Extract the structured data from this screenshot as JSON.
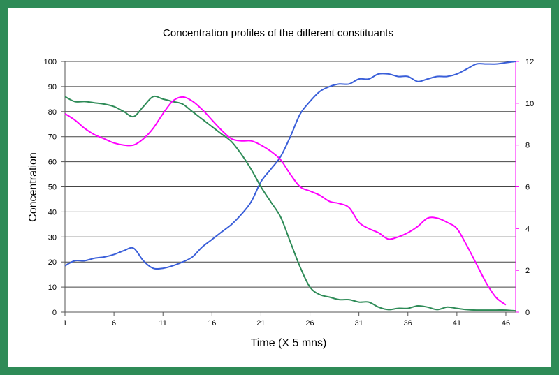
{
  "chart_data": {
    "type": "line",
    "title": "Concentration profiles of the different constituants",
    "xlabel": "Time (X 5 mns)",
    "ylabel": "Concentration",
    "y2label": "",
    "xlim": [
      1,
      47
    ],
    "ylim": [
      0,
      100
    ],
    "y2lim": [
      0,
      12
    ],
    "x_ticks": [
      1,
      6,
      11,
      16,
      21,
      26,
      31,
      36,
      41,
      46
    ],
    "y_ticks": [
      0,
      10,
      20,
      30,
      40,
      50,
      60,
      70,
      80,
      90,
      100
    ],
    "y2_ticks": [
      0,
      2,
      4,
      6,
      8,
      10,
      12
    ],
    "grid": "horizontal",
    "legend": "none",
    "series": [
      {
        "color": "#3a5fd9",
        "axis": "left",
        "x": [
          1,
          2,
          3,
          4,
          5,
          6,
          7,
          8,
          9,
          10,
          11,
          12,
          13,
          14,
          15,
          16,
          17,
          18,
          19,
          20,
          21,
          22,
          23,
          24,
          25,
          26,
          27,
          28,
          29,
          30,
          31,
          32,
          33,
          34,
          35,
          36,
          37,
          38,
          39,
          40,
          41,
          42,
          43,
          44,
          45,
          46,
          47
        ],
        "values": [
          18.5,
          20.5,
          20.5,
          21.5,
          22,
          23,
          24.5,
          25.5,
          20.5,
          17.5,
          17.5,
          18.5,
          20,
          22,
          26,
          29,
          32,
          35,
          39,
          44,
          52,
          57,
          62,
          70,
          79,
          84,
          88,
          90,
          91,
          91,
          93,
          93,
          95,
          95,
          94,
          94,
          92,
          93,
          94,
          94,
          95,
          97,
          99,
          99,
          99,
          99.5,
          100
        ]
      },
      {
        "color": "#2e8b57",
        "axis": "left",
        "x": [
          1,
          2,
          3,
          4,
          5,
          6,
          7,
          8,
          9,
          10,
          11,
          12,
          13,
          14,
          15,
          16,
          17,
          18,
          19,
          20,
          21,
          22,
          23,
          24,
          25,
          26,
          27,
          28,
          29,
          30,
          31,
          32,
          33,
          34,
          35,
          36,
          37,
          38,
          39,
          40,
          41,
          42,
          43,
          44,
          45,
          46,
          47
        ],
        "values": [
          86,
          84,
          84,
          83.5,
          83,
          82,
          80,
          78,
          82,
          86,
          85,
          84,
          83,
          80,
          77,
          74,
          71,
          68,
          63,
          57,
          50,
          44,
          38,
          28,
          18,
          10,
          7,
          6,
          5,
          5,
          4,
          4,
          2,
          1,
          1.5,
          1.5,
          2.5,
          2,
          1,
          2,
          1.5,
          1,
          0.8,
          0.8,
          0.8,
          0.8,
          0.5
        ]
      },
      {
        "color": "#ff00ff",
        "axis": "right",
        "x": [
          1,
          2,
          3,
          4,
          5,
          6,
          7,
          8,
          9,
          10,
          11,
          12,
          13,
          14,
          15,
          16,
          17,
          18,
          19,
          20,
          21,
          22,
          23,
          24,
          25,
          26,
          27,
          28,
          29,
          30,
          31,
          32,
          33,
          34,
          35,
          36,
          37,
          38,
          39,
          40,
          41,
          42,
          43,
          44,
          45,
          46
        ],
        "values": [
          9.5,
          9.2,
          8.8,
          8.5,
          8.3,
          8.1,
          8.0,
          8.0,
          8.3,
          8.8,
          9.5,
          10.1,
          10.3,
          10.1,
          9.7,
          9.2,
          8.7,
          8.3,
          8.2,
          8.2,
          8.0,
          7.7,
          7.3,
          6.6,
          6.0,
          5.8,
          5.6,
          5.3,
          5.2,
          5.0,
          4.3,
          4.0,
          3.8,
          3.5,
          3.6,
          3.8,
          4.1,
          4.5,
          4.5,
          4.3,
          4.0,
          3.2,
          2.3,
          1.4,
          0.7,
          0.35
        ]
      }
    ]
  }
}
